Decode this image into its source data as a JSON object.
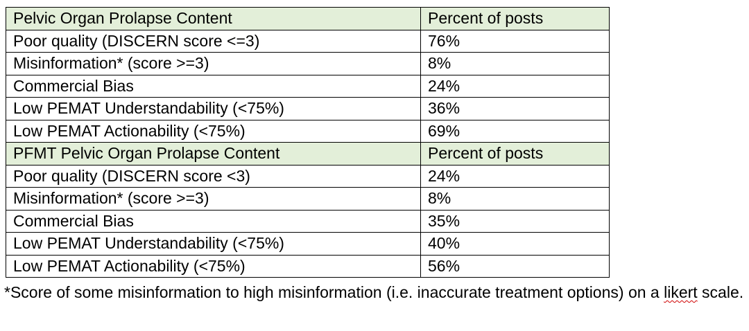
{
  "table": {
    "rows": [
      {
        "type": "header",
        "label": "Pelvic Organ Prolapse Content",
        "value": "Percent of posts"
      },
      {
        "type": "data",
        "label": "Poor quality (DISCERN score <=3)",
        "value": "76%"
      },
      {
        "type": "data",
        "label": "Misinformation* (score >=3)",
        "value": "8%"
      },
      {
        "type": "data",
        "label": "Commercial Bias",
        "value": "24%"
      },
      {
        "type": "data",
        "label": "Low PEMAT Understandability (<75%)",
        "value": "36%"
      },
      {
        "type": "data",
        "label": "Low PEMAT Actionability (<75%)",
        "value": "69%"
      },
      {
        "type": "header",
        "label": "PFMT Pelvic Organ Prolapse Content",
        "value": "Percent of posts"
      },
      {
        "type": "data",
        "label": "Poor quality (DISCERN score <3)",
        "value": "24%"
      },
      {
        "type": "data",
        "label": "Misinformation* (score >=3)",
        "value": "8%"
      },
      {
        "type": "data",
        "label": "Commercial Bias",
        "value": "35%"
      },
      {
        "type": "data",
        "label": "Low PEMAT Understandability (<75%)",
        "value": "40%"
      },
      {
        "type": "data",
        "label": "Low PEMAT Actionability (<75%)",
        "value": "56%"
      }
    ],
    "header_color": "#e3efd9"
  },
  "footnote": {
    "text_before": "*Score of some misinformation to high misinformation (i.e. inaccurate treatment options) on a ",
    "misspelled_word": "likert",
    "text_after": " scale."
  }
}
